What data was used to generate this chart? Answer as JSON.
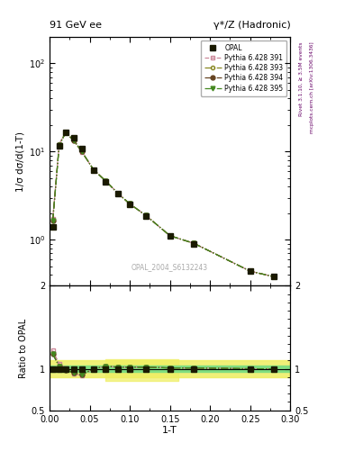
{
  "title_left": "91 GeV ee",
  "title_right": "γ*/Z (Hadronic)",
  "ylabel_main": "1/σ dσ/d(1-T)",
  "ylabel_ratio": "Ratio to OPAL",
  "xlabel": "1-T",
  "right_label_main": "Rivet 3.1.10, ≥ 3.5M events",
  "right_label_ratio": "mcplots.cern.ch [arXiv:1306.3436]",
  "watermark": "OPAL_2004_S6132243",
  "x_data": [
    0.004,
    0.012,
    0.02,
    0.03,
    0.04,
    0.055,
    0.07,
    0.085,
    0.1,
    0.12,
    0.15,
    0.18,
    0.25,
    0.28
  ],
  "y_opal": [
    1.4,
    11.5,
    16.5,
    14.2,
    10.8,
    6.2,
    4.5,
    3.3,
    2.5,
    1.85,
    1.1,
    0.9,
    0.44,
    0.38
  ],
  "ratio_391": [
    1.22,
    1.06,
    1.01,
    0.94,
    0.92,
    1.0,
    1.03,
    1.02,
    1.02,
    1.02,
    1.01,
    1.01,
    1.0,
    1.0
  ],
  "ratio_393": [
    1.18,
    1.03,
    0.99,
    0.95,
    0.93,
    1.0,
    1.03,
    1.02,
    1.02,
    1.02,
    1.01,
    1.01,
    1.0,
    1.0
  ],
  "ratio_394": [
    1.18,
    1.03,
    0.99,
    0.95,
    0.93,
    1.0,
    1.03,
    1.02,
    1.02,
    1.02,
    1.01,
    1.01,
    1.0,
    1.0
  ],
  "ratio_395": [
    1.18,
    1.03,
    0.99,
    0.95,
    0.93,
    1.0,
    1.03,
    1.02,
    1.02,
    1.02,
    1.01,
    1.01,
    1.0,
    1.0
  ],
  "color_391": "#cc8899",
  "color_393": "#888820",
  "color_394": "#664422",
  "color_395": "#448820",
  "opal_color": "#1a1a00",
  "band_green": "#80dd80",
  "band_yellow": "#eeee60",
  "xlim": [
    0.0,
    0.3
  ],
  "ylim_main": [
    0.3,
    200
  ],
  "ylim_ratio": [
    0.5,
    2.0
  ]
}
